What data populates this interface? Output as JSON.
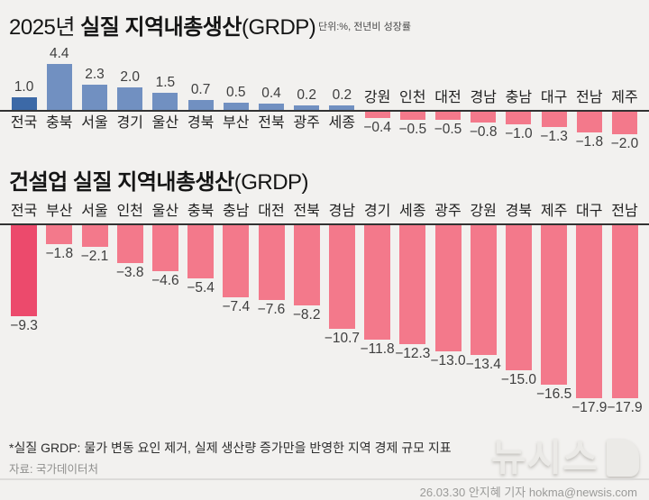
{
  "header": {
    "title_prefix": "2025년",
    "title_main": "실질 지역내총생산",
    "title_suffix": "(GRDP)",
    "unit_label": "단위:%,  전년비 성장률"
  },
  "section2": {
    "title_main": "건설업 실질 지역내총생산",
    "title_suffix": "(GRDP)"
  },
  "footer": {
    "note": "*실질 GRDP: 물가 변동 요인 제거, 실제 생산량 증가만을 반영한 지역 경제 규모 지표",
    "source": "자료: 국가데이터처",
    "credit": "26.03.30 안지혜 기자 hokma@newsis.com",
    "logo_text": "뉴시스"
  },
  "colors": {
    "background": "#f2f1ef",
    "baseline": "#323232",
    "bar_blue": "#7190c1",
    "bar_blue_dark": "#3c69a7",
    "bar_pink": "#f3798b",
    "bar_red_dark": "#ec4a6c"
  },
  "chart_data": [
    {
      "type": "bar",
      "title": "2025년 실질 지역내총생산(GRDP)",
      "unit": "단위:%, 전년비 성장률",
      "categories": [
        "전국",
        "충북",
        "서울",
        "경기",
        "울산",
        "경북",
        "부산",
        "전북",
        "광주",
        "세종",
        "강원",
        "인천",
        "대전",
        "경남",
        "충남",
        "대구",
        "전남",
        "제주"
      ],
      "values": [
        1.0,
        4.4,
        2.3,
        2.0,
        1.5,
        0.7,
        0.5,
        0.4,
        0.2,
        0.2,
        -0.4,
        -0.5,
        -0.5,
        -0.8,
        -1.0,
        -1.3,
        -1.8,
        -2.0
      ],
      "highlight_category": "전국",
      "positive_color": "#7190c1",
      "highlight_positive_color": "#3c69a7",
      "negative_color": "#f3798b",
      "value_labels": true,
      "ylim": [
        -2.5,
        5
      ],
      "grid": false,
      "legend": false
    },
    {
      "type": "bar",
      "title": "건설업 실질 지역내총생산(GRDP)",
      "unit": "단위:%, 전년비 성장률",
      "categories": [
        "전국",
        "부산",
        "서울",
        "인천",
        "울산",
        "충북",
        "충남",
        "대전",
        "전북",
        "경남",
        "경기",
        "세종",
        "광주",
        "강원",
        "경북",
        "제주",
        "대구",
        "전남"
      ],
      "values": [
        -9.3,
        -1.8,
        -2.1,
        -3.8,
        -4.6,
        -5.4,
        -7.4,
        -7.6,
        -8.2,
        -10.7,
        -11.8,
        -12.3,
        -13.0,
        -13.4,
        -15.0,
        -16.5,
        -17.9,
        -17.9
      ],
      "highlight_category": "전국",
      "negative_color": "#f3798b",
      "highlight_negative_color": "#ec4a6c",
      "value_labels": true,
      "ylim": [
        -19,
        0
      ],
      "grid": false,
      "legend": false
    }
  ]
}
